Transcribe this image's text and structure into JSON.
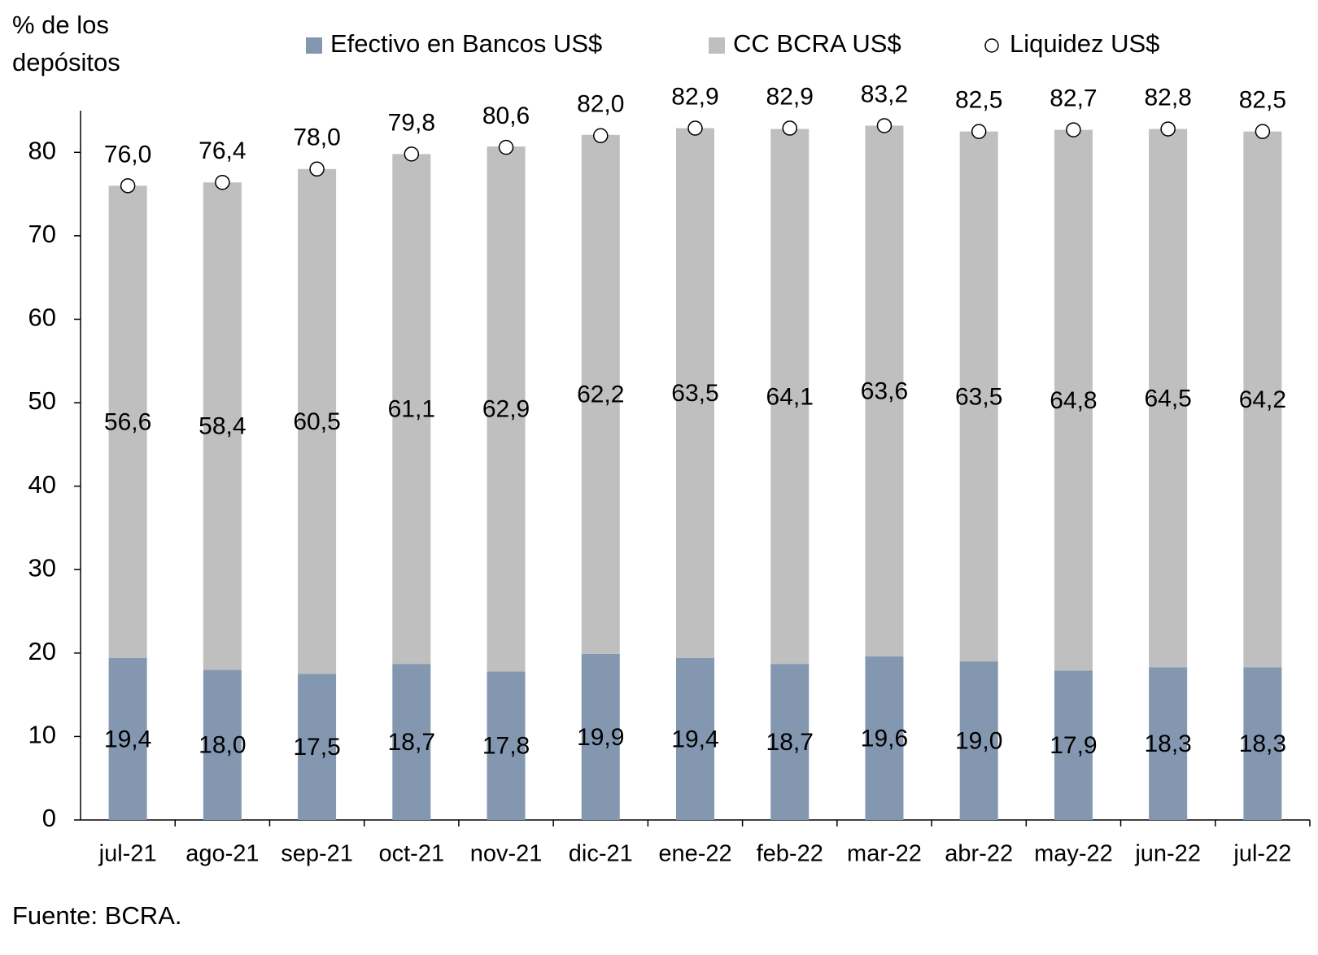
{
  "chart_data": {
    "type": "bar",
    "stacked": true,
    "y_label": [
      "% de los",
      "depósitos"
    ],
    "source": "Fuente: BCRA.",
    "categories": [
      "jul-21",
      "ago-21",
      "sep-21",
      "oct-21",
      "nov-21",
      "dic-21",
      "ene-22",
      "feb-22",
      "mar-22",
      "abr-22",
      "may-22",
      "jun-22",
      "jul-22"
    ],
    "series": [
      {
        "name": "Efectivo en Bancos US$",
        "color": "#8497b0",
        "type": "bar",
        "values": [
          19.4,
          18.0,
          17.5,
          18.7,
          17.8,
          19.9,
          19.4,
          18.7,
          19.6,
          19.0,
          17.9,
          18.3,
          18.3
        ],
        "value_labels": [
          "19,4",
          "18,0",
          "17,5",
          "18,7",
          "17,8",
          "19,9",
          "19,4",
          "18,7",
          "19,6",
          "19,0",
          "17,9",
          "18,3",
          "18,3"
        ]
      },
      {
        "name": "CC BCRA US$",
        "color": "#bfbfbf",
        "type": "bar",
        "values": [
          56.6,
          58.4,
          60.5,
          61.1,
          62.9,
          62.2,
          63.5,
          64.1,
          63.6,
          63.5,
          64.8,
          64.5,
          64.2
        ],
        "value_labels": [
          "56,6",
          "58,4",
          "60,5",
          "61,1",
          "62,9",
          "62,2",
          "63,5",
          "64,1",
          "63,6",
          "63,5",
          "64,8",
          "64,5",
          "64,2"
        ]
      },
      {
        "name": "Liquidez US$",
        "color": "#ffffff",
        "type": "scatter",
        "values": [
          76.0,
          76.4,
          78.0,
          79.8,
          80.6,
          82.0,
          82.9,
          82.9,
          83.2,
          82.5,
          82.7,
          82.8,
          82.5
        ],
        "value_labels": [
          "76,0",
          "76,4",
          "78,0",
          "79,8",
          "80,6",
          "82,0",
          "82,9",
          "82,9",
          "83,2",
          "82,5",
          "82,7",
          "82,8",
          "82,5"
        ]
      }
    ],
    "ylim": [
      0,
      85
    ],
    "yticks": [
      0,
      10,
      20,
      30,
      40,
      50,
      60,
      70,
      80
    ],
    "grid": false
  }
}
